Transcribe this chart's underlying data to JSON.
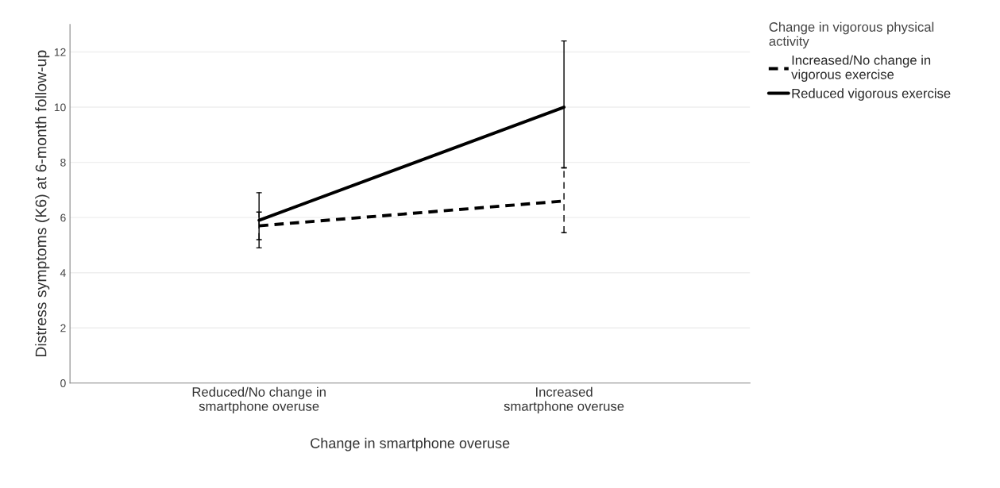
{
  "chart_data": {
    "type": "line",
    "xlabel": "Change in smartphone overuse",
    "ylabel": "Distress symptoms (K6) at 6-month follow-up",
    "legend_title": "Change in vigorous physical\nactivity",
    "categories": [
      "Reduced/No change in\nsmartphone overuse",
      "Increased\nsmartphone overuse"
    ],
    "series": [
      {
        "name": "Increased/No change in\nvigorous exercise",
        "color": "#000000",
        "line_style": "dashed",
        "values": [
          5.7,
          6.6
        ],
        "errors": [
          [
            5.2,
            6.2
          ],
          [
            5.45,
            7.8
          ]
        ]
      },
      {
        "name": "Reduced vigorous exercise",
        "color": "#000000",
        "line_style": "solid",
        "values": [
          5.9,
          10.0
        ],
        "errors": [
          [
            4.9,
            6.9
          ],
          [
            7.8,
            12.4
          ]
        ]
      }
    ],
    "ylim": [
      0,
      13
    ],
    "yticks": [
      0,
      2,
      4,
      6,
      8,
      10,
      12
    ],
    "grid": "y",
    "legend": "top right",
    "marker": "none"
  }
}
